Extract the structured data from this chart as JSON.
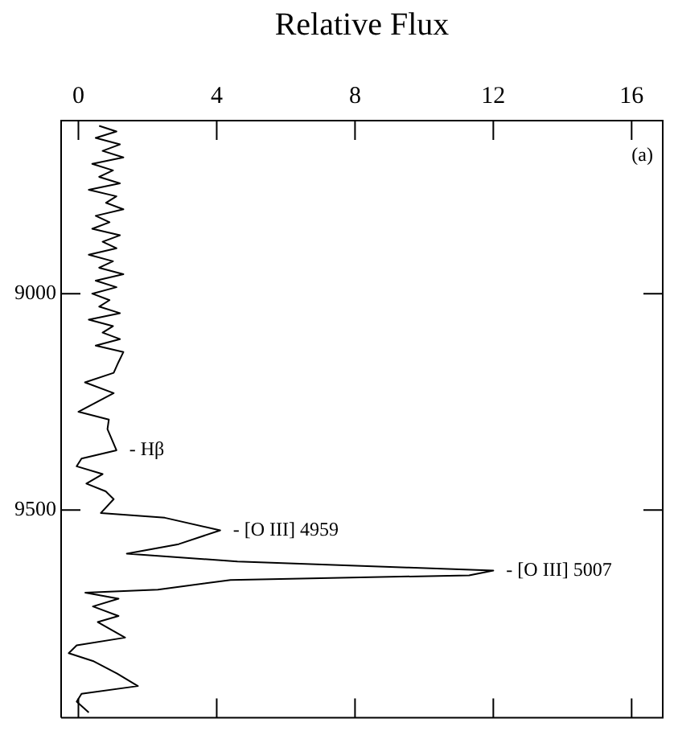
{
  "chart_data": {
    "type": "line",
    "orientation": "horizontal",
    "xlabel": "Relative Flux",
    "x": [
      8612,
      8625,
      8640,
      8655,
      8670,
      8685,
      8700,
      8715,
      8730,
      8745,
      8760,
      8775,
      8790,
      8805,
      8820,
      8835,
      8850,
      8865,
      8880,
      8895,
      8910,
      8925,
      8940,
      8955,
      8970,
      8985,
      9000,
      9015,
      9030,
      9045,
      9060,
      9075,
      9090,
      9105,
      9120,
      9135,
      9158,
      9183,
      9205,
      9230,
      9273,
      9291,
      9313,
      9362,
      9381,
      9399,
      9417,
      9439,
      9457,
      9475,
      9507,
      9518,
      9547,
      9579,
      9601,
      9619,
      9633,
      9640,
      9651,
      9662,
      9684,
      9691,
      9705,
      9723,
      9745,
      9759,
      9795,
      9813,
      9831,
      9849,
      9878,
      9907,
      9925,
      9943,
      9968
    ],
    "series": [
      {
        "color": "#000000",
        "values": [
          0.6,
          1.1,
          0.5,
          1.2,
          0.7,
          1.3,
          0.4,
          1.0,
          0.6,
          1.2,
          0.3,
          1.1,
          0.8,
          1.3,
          0.5,
          0.9,
          0.4,
          1.2,
          0.7,
          1.1,
          0.3,
          1.0,
          0.6,
          1.3,
          0.5,
          1.1,
          0.4,
          0.9,
          0.6,
          1.2,
          0.3,
          1.0,
          0.7,
          1.2,
          0.5,
          1.3,
          1.16,
          1.02,
          0.19,
          1.02,
          0.0,
          0.88,
          0.84,
          1.1,
          0.09,
          -0.05,
          0.7,
          0.23,
          0.79,
          1.02,
          0.65,
          2.5,
          4.1,
          2.9,
          1.4,
          4.6,
          9.5,
          12.0,
          11.3,
          4.4,
          2.3,
          0.2,
          1.16,
          0.42,
          1.16,
          0.56,
          1.35,
          -0.05,
          -0.28,
          0.42,
          1.12,
          1.72,
          0.09,
          -0.05,
          0.3
        ]
      }
    ],
    "xlim": [
      -0.5,
      16.9
    ],
    "xticks": [
      0,
      4,
      8,
      12,
      16
    ],
    "ylim": [
      9980,
      8600
    ],
    "yticks": [
      9000,
      9500
    ],
    "legend": false,
    "marker": "none",
    "line_style": "solid",
    "annotations": [
      "(a)",
      {
        "text": "- Hβ",
        "x": 1.1,
        "y": 9362
      },
      {
        "text": "- [O III] 4959",
        "x": 4.1,
        "y": 9547
      },
      {
        "text": "- [O III] 5007",
        "x": 12.0,
        "y": 9640
      }
    ]
  }
}
